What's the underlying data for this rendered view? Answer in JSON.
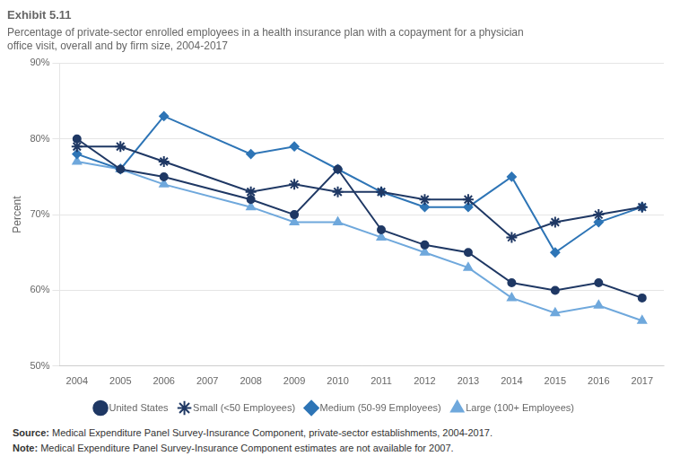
{
  "chart_data": {
    "type": "line",
    "title": "Exhibit 5.11",
    "subtitle": "Percentage of private-sector enrolled employees in a health insurance plan with a copayment for a physician\noffice visit, overall and by firm size, 2004-2017",
    "y_label": "Percent",
    "annotations": [
      {
        "label": "Source:",
        "text": "Medical Expenditure Panel Survey-Insurance Component, private-sector establishments, 2004-2017."
      },
      {
        "label": "Note:",
        "text": "Medical Expenditure Panel Survey-Insurance Component estimates are not available for 2007."
      }
    ],
    "x": [
      2004,
      2005,
      2006,
      2008,
      2009,
      2010,
      2011,
      2012,
      2013,
      2014,
      2015,
      2016,
      2017
    ],
    "series": [
      {
        "name": "United States",
        "color": "#1f3864",
        "marker": "circle",
        "values": [
          80,
          76,
          75,
          72,
          70,
          76,
          68,
          66,
          65,
          61,
          60,
          61,
          59
        ]
      },
      {
        "name": "Small (<50 Employees)",
        "color": "#1f3864",
        "marker": "star",
        "values": [
          79,
          79,
          77,
          73,
          74,
          73,
          73,
          72,
          72,
          67,
          69,
          70,
          71
        ]
      },
      {
        "name": "Medium (50-99 Employees)",
        "color": "#2e75b6",
        "marker": "diamond",
        "values": [
          78,
          76,
          83,
          78,
          79,
          76,
          73,
          71,
          71,
          75,
          65,
          69,
          71
        ]
      },
      {
        "name": "Large (100+ Employees)",
        "color": "#6fa8dc",
        "marker": "triangle",
        "values": [
          77,
          76,
          74,
          71,
          69,
          69,
          67,
          65,
          63,
          59,
          57,
          58,
          56
        ]
      }
    ],
    "xlim": [
      2003.6,
      2017.5
    ],
    "xticks": [
      2004,
      2005,
      2006,
      2007,
      2008,
      2009,
      2010,
      2011,
      2012,
      2013,
      2014,
      2015,
      2016,
      2017
    ],
    "ylim": [
      50,
      90
    ],
    "yticks": [
      {
        "value": 50,
        "label": "50%"
      },
      {
        "value": 60,
        "label": "60%"
      },
      {
        "value": 70,
        "label": "70%"
      },
      {
        "value": 80,
        "label": "80%"
      },
      {
        "value": 90,
        "label": "90%"
      }
    ],
    "grid": true,
    "legend": "bottom"
  }
}
